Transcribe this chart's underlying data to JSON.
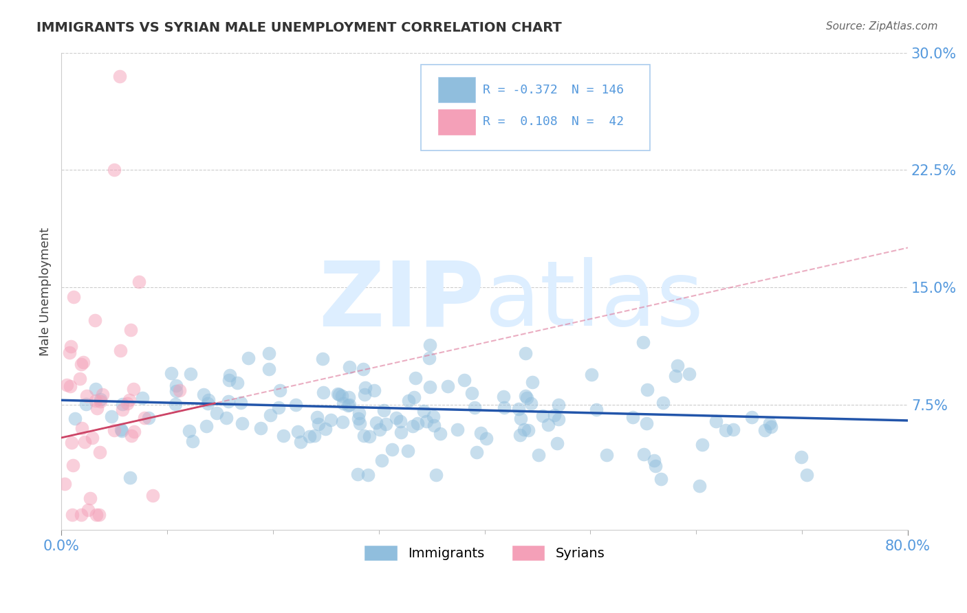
{
  "title": "IMMIGRANTS VS SYRIAN MALE UNEMPLOYMENT CORRELATION CHART",
  "source": "Source: ZipAtlas.com",
  "ylabel": "Male Unemployment",
  "xlim": [
    0.0,
    0.8
  ],
  "ylim": [
    -0.005,
    0.3
  ],
  "yticks": [
    0.075,
    0.15,
    0.225,
    0.3
  ],
  "ytick_labels": [
    "7.5%",
    "15.0%",
    "22.5%",
    "30.0%"
  ],
  "xticks": [
    0.0,
    0.8
  ],
  "xtick_labels": [
    "0.0%",
    "80.0%"
  ],
  "immigrant_color": "#90bedd",
  "syrian_color": "#f4a0b8",
  "trend_immigrant_color": "#2255aa",
  "trend_syrian_solid_color": "#cc4466",
  "trend_syrian_dashed_color": "#dd7799",
  "R_immigrant": -0.372,
  "N_immigrant": 146,
  "R_syrian": 0.108,
  "N_syrian": 42,
  "legend_label_immigrant": "Immigrants",
  "legend_label_syrian": "Syrians",
  "background_color": "#ffffff",
  "grid_color": "#cccccc",
  "axis_label_color": "#5599dd",
  "title_color": "#333333",
  "watermark_color": "#ddeeff"
}
